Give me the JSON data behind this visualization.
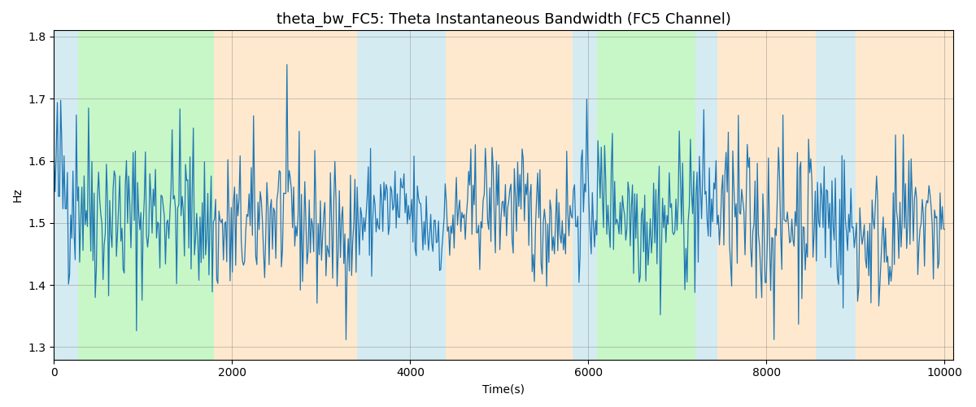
{
  "title": "theta_bw_FC5: Theta Instantaneous Bandwidth (FC5 Channel)",
  "xlabel": "Time(s)",
  "ylabel": "Hz",
  "xlim": [
    0,
    10100
  ],
  "ylim": [
    1.28,
    1.81
  ],
  "yticks": [
    1.3,
    1.4,
    1.5,
    1.6,
    1.7,
    1.8
  ],
  "xticks": [
    0,
    2000,
    4000,
    6000,
    8000,
    10000
  ],
  "line_color": "#1f77b4",
  "bg_bands": [
    {
      "xmin": 0,
      "xmax": 270,
      "color": "#add8e6",
      "alpha": 0.5
    },
    {
      "xmin": 270,
      "xmax": 1800,
      "color": "#90ee90",
      "alpha": 0.5
    },
    {
      "xmin": 1800,
      "xmax": 3400,
      "color": "#ffd59e",
      "alpha": 0.5
    },
    {
      "xmin": 3400,
      "xmax": 4400,
      "color": "#add8e6",
      "alpha": 0.5
    },
    {
      "xmin": 4400,
      "xmax": 5820,
      "color": "#ffd59e",
      "alpha": 0.5
    },
    {
      "xmin": 5820,
      "xmax": 6100,
      "color": "#add8e6",
      "alpha": 0.5
    },
    {
      "xmin": 6100,
      "xmax": 7200,
      "color": "#90ee90",
      "alpha": 0.5
    },
    {
      "xmin": 7200,
      "xmax": 7450,
      "color": "#add8e6",
      "alpha": 0.5
    },
    {
      "xmin": 7450,
      "xmax": 8550,
      "color": "#ffd59e",
      "alpha": 0.5
    },
    {
      "xmin": 8550,
      "xmax": 9000,
      "color": "#add8e6",
      "alpha": 0.5
    },
    {
      "xmin": 9000,
      "xmax": 10100,
      "color": "#ffd59e",
      "alpha": 0.5
    }
  ],
  "seed": 42,
  "n_points": 800,
  "mean": 1.5,
  "title_fontsize": 13,
  "figsize": [
    12.0,
    5.0
  ],
  "dpi": 100
}
